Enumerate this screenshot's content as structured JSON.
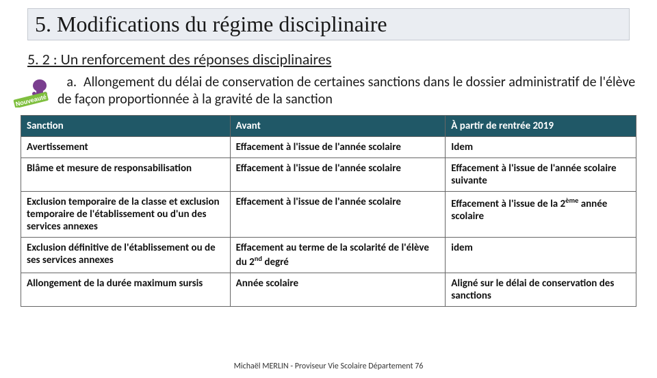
{
  "title": "5. Modifications du régime disciplinaire",
  "subtitle": "5. 2 : Un renforcement des réponses disciplinaires",
  "paragraph_index": "a.",
  "paragraph": "Allongement du délai de conservation de certaines sanctions dans le dossier administratif de l'élève de façon proportionnée à la gravité de la sanction",
  "badge_text": "Nouveauté",
  "colors": {
    "title_bg": "#eaedf2",
    "title_border": "#c5c9d1",
    "header_bg": "#205867",
    "header_text": "#ffffff",
    "cell_border": "#666666",
    "badge_banner": "#7fbf3f",
    "badge_figure": "#7a3e8f"
  },
  "typography": {
    "title_family": "Garamond serif",
    "title_size_pt": 24,
    "subtitle_size_pt": 17,
    "body_size_pt": 15,
    "table_size_pt": 11
  },
  "table": {
    "columns": [
      "Sanction",
      "Avant",
      "À partir de rentrée 2019"
    ],
    "col_widths_pct": [
      34,
      35,
      31
    ],
    "rows": [
      {
        "sanction": "Avertissement",
        "avant": "Effacement à l'issue de l'année scolaire",
        "apres_html": "Idem"
      },
      {
        "sanction": "Blâme et mesure de responsabilisation",
        "avant": "Effacement à l'issue de l'année scolaire",
        "apres_html": "Effacement à l'issue de l'année scolaire <span class='bold-emph'>suivante</span>"
      },
      {
        "sanction": "Exclusion temporaire de la classe et exclusion temporaire de l'établissement ou d'un des services annexes",
        "avant": "Effacement à l'issue de l'année scolaire",
        "apres_html": "Effacement à l'issue de la 2<sup>ème</sup> année scolaire"
      },
      {
        "sanction": "Exclusion définitive de l'établissement ou de ses services annexes",
        "avant": "Effacement au terme de la scolarité de l'élève du 2<sup>nd</sup> degré",
        "apres_html": "idem"
      },
      {
        "sanction": "Allongement de la durée maximum sursis",
        "avant": "Année scolaire",
        "apres_html": "Aligné sur le délai de conservation des sanctions"
      }
    ]
  },
  "footer": "Michaël MERLIN - Proviseur Vie Scolaire Département 76"
}
